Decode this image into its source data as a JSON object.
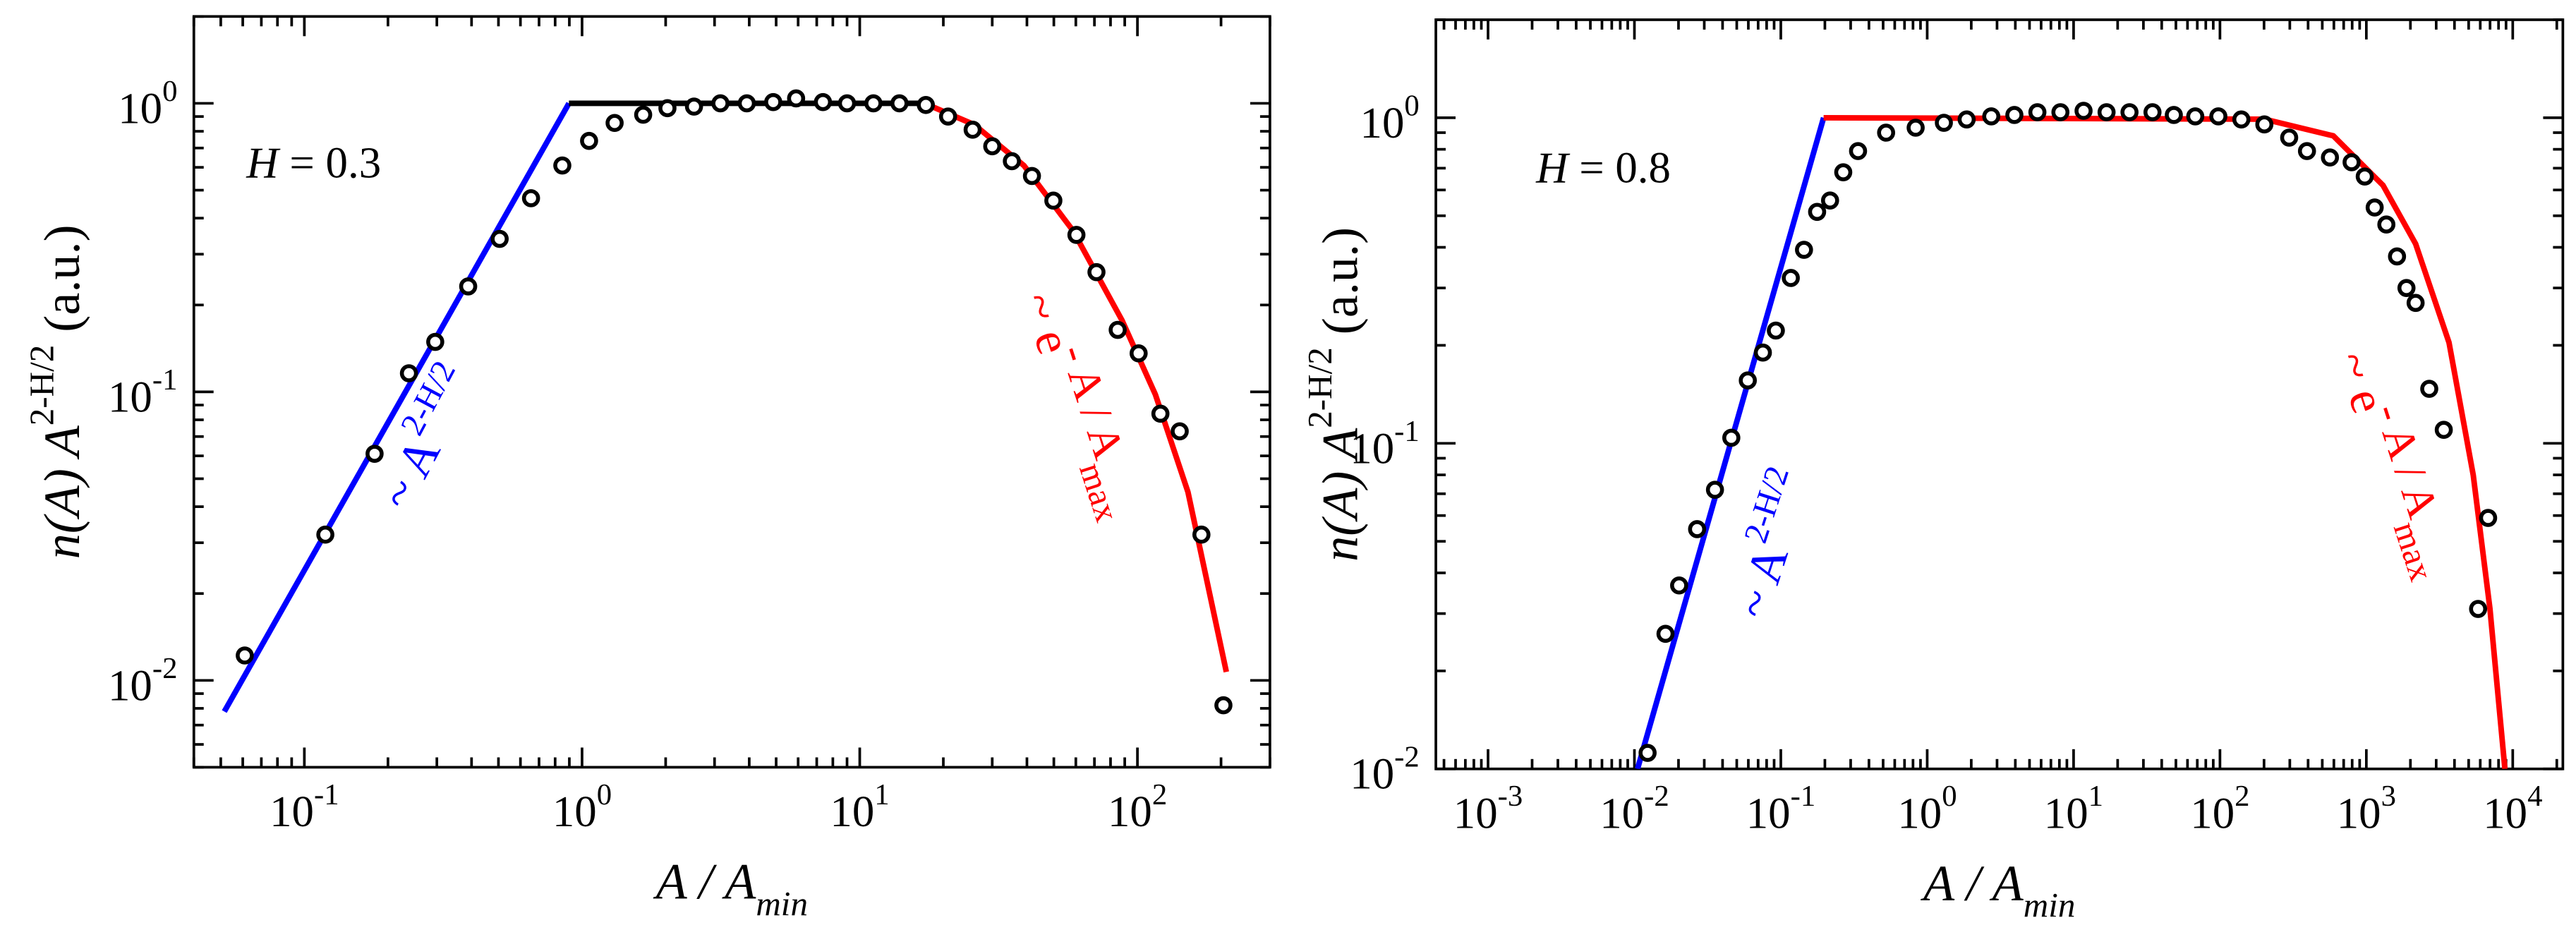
{
  "chart_data": [
    {
      "type": "scatter",
      "xscale": "log",
      "yscale": "log",
      "xlim": [
        0.04,
        300
      ],
      "ylim": [
        0.005,
        2
      ],
      "xticks": [
        {
          "value": 0.1,
          "label": [
            "10",
            "-1"
          ]
        },
        {
          "value": 1,
          "label": [
            "10",
            "0"
          ]
        },
        {
          "value": 10,
          "label": [
            "10",
            "1"
          ]
        },
        {
          "value": 100,
          "label": [
            "10",
            "2"
          ]
        }
      ],
      "yticks": [
        {
          "value": 0.01,
          "label": [
            "10",
            "-2"
          ]
        },
        {
          "value": 0.1,
          "label": [
            "10",
            "-1"
          ]
        },
        {
          "value": 1,
          "label": [
            "10",
            "0"
          ]
        }
      ],
      "xlabel": [
        "A / A",
        "min"
      ],
      "ylabel": [
        "n(A) A",
        "2-H/2",
        " (a.u.)"
      ],
      "annotations": [
        {
          "text": [
            "H",
            " = 0.3"
          ],
          "color": "#000000"
        },
        {
          "text": [
            "~ A",
            "2-H/2"
          ],
          "color": "#0000ff"
        },
        {
          "text": [
            "~ e",
            "- A / A",
            "max"
          ],
          "color": "#ff0000"
        }
      ],
      "points": {
        "color": "#000000",
        "x": [
          0.061,
          0.119,
          0.179,
          0.238,
          0.296,
          0.389,
          0.505,
          0.655,
          0.849,
          1.06,
          1.31,
          1.66,
          2.03,
          2.53,
          3.15,
          3.92,
          4.88,
          5.9,
          7.37,
          9.0,
          11.2,
          13.9,
          17.3,
          20.8,
          25.5,
          30.0,
          35.3,
          41.7,
          49.8,
          60.3,
          71.2,
          84.9,
          101,
          121,
          142,
          170,
          204
        ],
        "y": [
          0.0122,
          0.032,
          0.061,
          0.116,
          0.149,
          0.232,
          0.339,
          0.469,
          0.609,
          0.741,
          0.855,
          0.913,
          0.962,
          0.974,
          1.0,
          1.0,
          1.01,
          1.04,
          1.01,
          1.0,
          1.0,
          1.0,
          0.987,
          0.9,
          0.81,
          0.71,
          0.63,
          0.56,
          0.46,
          0.35,
          0.26,
          0.164,
          0.136,
          0.084,
          0.073,
          0.032,
          0.0082
        ]
      },
      "lines": [
        {
          "color": "#0000ff",
          "x": [
            0.0515,
            0.897
          ],
          "y": [
            0.0078,
            1
          ]
        },
        {
          "color": "#000000",
          "x": [
            0.897,
            17.1
          ],
          "y": [
            1,
            1
          ]
        },
        {
          "color": "#ff0000",
          "x": [
            17.1,
            25.8,
            39,
            58.6,
            88,
            116,
            152,
            209
          ],
          "y": [
            1,
            0.844,
            0.609,
            0.362,
            0.177,
            0.098,
            0.045,
            0.0107
          ]
        }
      ]
    },
    {
      "type": "scatter",
      "xscale": "log",
      "yscale": "log",
      "xlim": [
        0.00044,
        22000
      ],
      "ylim": [
        0.01,
        2
      ],
      "xticks": [
        {
          "value": 0.001,
          "label": [
            "10",
            "-3"
          ]
        },
        {
          "value": 0.01,
          "label": [
            "10",
            "-2"
          ]
        },
        {
          "value": 0.1,
          "label": [
            "10",
            "-1"
          ]
        },
        {
          "value": 1,
          "label": [
            "10",
            "0"
          ]
        },
        {
          "value": 10,
          "label": [
            "10",
            "1"
          ]
        },
        {
          "value": 100,
          "label": [
            "10",
            "2"
          ]
        },
        {
          "value": 1000,
          "label": [
            "10",
            "3"
          ]
        },
        {
          "value": 10000,
          "label": [
            "10",
            "4"
          ]
        }
      ],
      "yticks": [
        {
          "value": 0.01,
          "label": [
            "10",
            "-2"
          ]
        },
        {
          "value": 0.1,
          "label": [
            "10",
            "-1"
          ]
        },
        {
          "value": 1,
          "label": [
            "10",
            "0"
          ]
        }
      ],
      "xlabel": [
        "A / A",
        "min"
      ],
      "ylabel": [
        "n(A) A",
        "2-H/2",
        " (a.u.)"
      ],
      "annotations": [
        {
          "text": [
            "H",
            " = 0.8"
          ],
          "color": "#000000"
        },
        {
          "text": [
            "~ A",
            "2-H/2"
          ],
          "color": "#0000ff"
        },
        {
          "text": [
            "~ e",
            "- A / A",
            "max"
          ],
          "color": "#ff0000"
        }
      ],
      "points": {
        "color": "#000000",
        "x": [
          0.0123,
          0.0163,
          0.0202,
          0.0268,
          0.0355,
          0.0459,
          0.0595,
          0.0754,
          0.0925,
          0.117,
          0.144,
          0.177,
          0.217,
          0.267,
          0.337,
          0.524,
          0.834,
          1.3,
          1.86,
          2.74,
          3.94,
          5.66,
          8.13,
          11.7,
          16.8,
          24.1,
          34.6,
          48.4,
          67.8,
          97.5,
          140,
          201,
          297,
          393,
          564,
          793,
          975,
          1140,
          1370,
          1620,
          1880,
          2170,
          2690,
          3380,
          5800,
          6790
        ],
        "y": [
          0.0112,
          0.026,
          0.0366,
          0.0545,
          0.072,
          0.104,
          0.156,
          0.19,
          0.222,
          0.322,
          0.393,
          0.514,
          0.557,
          0.68,
          0.79,
          0.9,
          0.932,
          0.965,
          0.988,
          1.01,
          1.02,
          1.04,
          1.04,
          1.05,
          1.04,
          1.04,
          1.04,
          1.02,
          1.01,
          1.01,
          0.988,
          0.954,
          0.869,
          0.79,
          0.755,
          0.73,
          0.66,
          0.53,
          0.47,
          0.375,
          0.3,
          0.27,
          0.147,
          0.11,
          0.031,
          0.059
        ]
      },
      "lines": [
        {
          "color": "#0000ff",
          "x": [
            0.0105,
            0.196
          ],
          "y": [
            0.01,
            1
          ]
        },
        {
          "color": "#ff0000",
          "x": [
            0.196,
            201,
            595,
            1300,
            2170,
            3670,
            5370,
            6990,
            8840
          ],
          "y": [
            1,
            0.99,
            0.88,
            0.62,
            0.41,
            0.204,
            0.08,
            0.031,
            0.01
          ]
        }
      ]
    }
  ]
}
